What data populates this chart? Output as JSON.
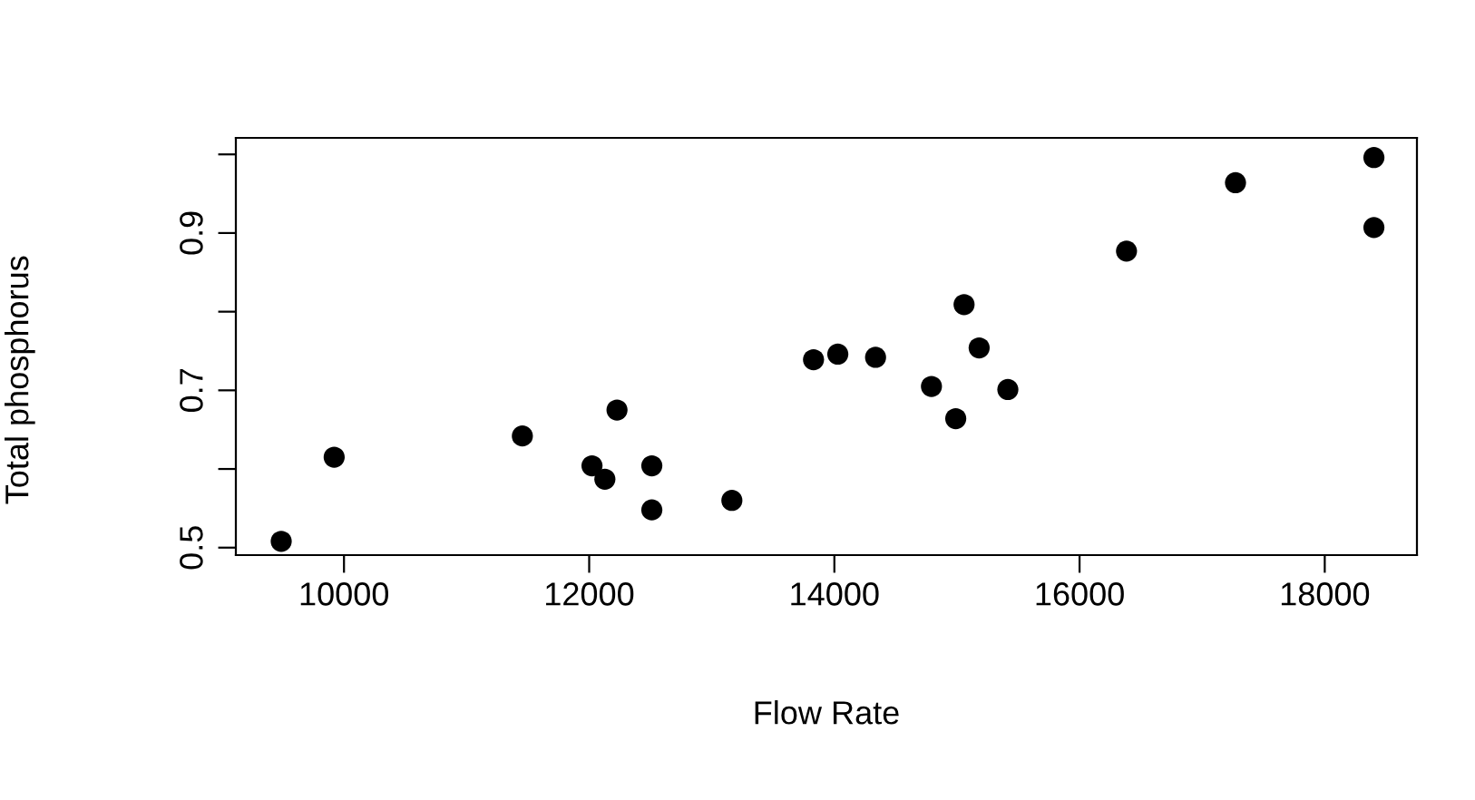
{
  "chart_data": {
    "type": "scatter",
    "xlabel": "Flow Rate",
    "ylabel": "Total phosphorus",
    "x": [
      9488,
      9920,
      11455,
      12023,
      12128,
      12227,
      12511,
      12511,
      13164,
      13830,
      14028,
      14336,
      14792,
      14990,
      15058,
      15181,
      15415,
      16383,
      17272,
      18401,
      18401
    ],
    "series": [
      {
        "color": "#000000",
        "values": [
          0.508,
          0.615,
          0.642,
          0.604,
          0.587,
          0.675,
          0.604,
          0.548,
          0.56,
          0.739,
          0.746,
          0.742,
          0.705,
          0.664,
          0.809,
          0.754,
          0.701,
          0.877,
          0.964,
          0.996,
          0.907
        ]
      }
    ],
    "xlim": [
      9118,
      18752
    ],
    "ylim": [
      0.4905,
      1.021
    ],
    "xticks": [
      10000,
      12000,
      14000,
      16000,
      18000
    ],
    "yticks": [
      0.5,
      {
        "value": 0.6,
        "label": null
      },
      0.7,
      {
        "value": 0.8,
        "label": null
      },
      0.9,
      {
        "value": 1.0,
        "label": null
      }
    ],
    "marker": "circle",
    "grid": false,
    "legend": false
  }
}
